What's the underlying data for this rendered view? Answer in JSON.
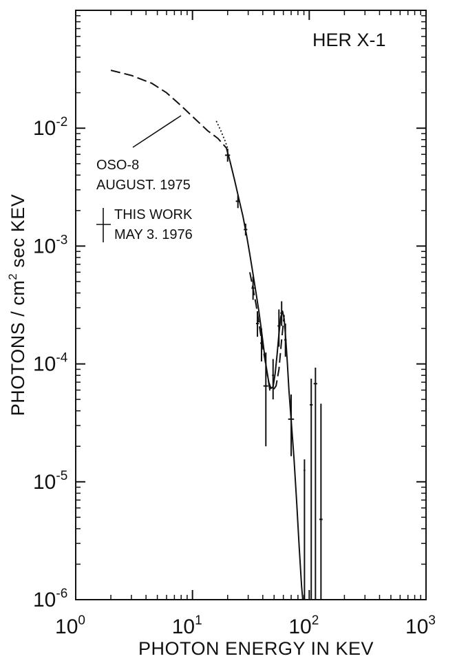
{
  "chart_data": {
    "type": "scatter",
    "title": "HER X-1",
    "xlabel": "PHOTON ENERGY IN KEV",
    "ylabel": "PHOTONS / cm² sec KEV",
    "ylabel_parts": {
      "pre": "PHOTONS / cm",
      "sup": "2",
      "post": " sec KEV"
    },
    "x_scale": "log",
    "y_scale": "log",
    "xlim": [
      1,
      1000
    ],
    "ylim": [
      1e-06,
      0.1
    ],
    "x_ticks": [
      {
        "value": 1,
        "base": "10",
        "exp": "0"
      },
      {
        "value": 10,
        "base": "10",
        "exp": "1"
      },
      {
        "value": 100,
        "base": "10",
        "exp": "2"
      },
      {
        "value": 1000,
        "base": "10",
        "exp": "3"
      }
    ],
    "y_ticks": [
      {
        "value": 0.01,
        "base": "10",
        "exp": "-2"
      },
      {
        "value": 0.001,
        "base": "10",
        "exp": "-3"
      },
      {
        "value": 0.0001,
        "base": "10",
        "exp": "-4"
      },
      {
        "value": 1e-05,
        "base": "10",
        "exp": "-5"
      },
      {
        "value": 1e-06,
        "base": "10",
        "exp": "-6"
      }
    ],
    "grid": false,
    "annotations": {
      "oso8": [
        "OSO-8",
        "AUGUST. 1975"
      ],
      "this_work": [
        "THIS WORK",
        "MAY 3. 1976"
      ]
    },
    "series": [
      {
        "style": "dashed",
        "x": [
          2.0,
          3.0,
          4.5,
          6.0,
          8.0,
          10.5,
          13.5,
          16.5,
          19.5
        ],
        "y": [
          0.031,
          0.028,
          0.024,
          0.02,
          0.0155,
          0.012,
          0.0095,
          0.0082,
          0.0068
        ]
      },
      {
        "style": "dotted",
        "x": [
          16.0,
          17.5,
          19.0,
          20.0
        ],
        "y": [
          0.0115,
          0.0095,
          0.0078,
          0.0068
        ]
      },
      {
        "style": "solid",
        "x": [
          19.5,
          21,
          23,
          25,
          27,
          29,
          31,
          33,
          35,
          37,
          39,
          41,
          43,
          45,
          47,
          49,
          51,
          53,
          55,
          57,
          59,
          61,
          63,
          65,
          67,
          70,
          74,
          78,
          82,
          86,
          88
        ],
        "y": [
          0.0068,
          0.0052,
          0.0036,
          0.0025,
          0.0018,
          0.00125,
          0.00085,
          0.00058,
          0.0004,
          0.00028,
          0.00019,
          0.00013,
          9.2e-05,
          7e-05,
          6.2e-05,
          6.4e-05,
          8.2e-05,
          0.00012,
          0.00018,
          0.00025,
          0.00028,
          0.00024,
          0.00016,
          0.0001,
          6e-05,
          3.3e-05,
          1.6e-05,
          6.8e-06,
          2.8e-06,
          1.3e-06,
          1e-06
        ]
      },
      {
        "style": "dashed",
        "x": [
          31,
          35,
          39,
          43,
          46,
          49,
          52,
          55,
          58,
          61
        ],
        "y": [
          0.0006,
          0.00032,
          0.00016,
          9.2e-05,
          6e-05,
          6e-05,
          6.5e-05,
          9e-05,
          0.00016,
          0.00026
        ]
      }
    ],
    "points": [
      {
        "x": 20.0,
        "xerr": [
          19.0,
          21.0
        ],
        "y": 0.0059,
        "yerr": [
          0.0052,
          0.0067
        ]
      },
      {
        "x": 24.5,
        "xerr": [
          23.5,
          25.5
        ],
        "y": 0.0024,
        "yerr": [
          0.0021,
          0.0027
        ]
      },
      {
        "x": 28.5,
        "xerr": [
          27.5,
          29.5
        ],
        "y": 0.00138,
        "yerr": [
          0.00123,
          0.00155
        ]
      },
      {
        "x": 33.0,
        "xerr": [
          32.0,
          34.0
        ],
        "y": 0.00044,
        "yerr": [
          0.00035,
          0.00055
        ]
      },
      {
        "x": 36.0,
        "xerr": [
          35.0,
          37.0
        ],
        "y": 0.00022,
        "yerr": [
          0.00017,
          0.00028
        ]
      },
      {
        "x": 39.0,
        "xerr": [
          38.0,
          40.0
        ],
        "y": 0.00015,
        "yerr": [
          0.000105,
          0.0002
        ]
      },
      {
        "x": 42.5,
        "xerr": [
          40.5,
          44.5
        ],
        "y": 6.5e-05,
        "yerr": [
          2e-05,
          0.000125
        ]
      },
      {
        "x": 49.0,
        "xerr": [
          48.0,
          50.0
        ],
        "y": 8e-05,
        "yerr": [
          5e-05,
          0.00011
        ]
      },
      {
        "x": 55.0,
        "xerr": [
          53.5,
          56.5
        ],
        "y": 0.00021,
        "yerr": [
          0.00014,
          0.00029
        ]
      },
      {
        "x": 58.0,
        "xerr": [
          56.5,
          59.5
        ],
        "y": 0.00027,
        "yerr": [
          0.00021,
          0.00034
        ]
      },
      {
        "x": 62.5,
        "xerr": [
          61.0,
          64.0
        ],
        "y": 0.00016,
        "yerr": [
          0.000115,
          0.00022
        ]
      },
      {
        "x": 70.0,
        "xerr": [
          66.0,
          74.0
        ],
        "y": 3.4e-05,
        "yerr": [
          1.65e-05,
          5.5e-05
        ]
      },
      {
        "x": 91.0,
        "xerr": [
          89.5,
          92.5
        ],
        "y": 1.25e-05,
        "yerr": [
          1e-06,
          1.55e-05
        ]
      },
      {
        "x": 104.0,
        "xerr": [
          101.0,
          107.0
        ],
        "y": 4.5e-05,
        "yerr": [
          1e-06,
          7.5e-05
        ]
      },
      {
        "x": 113.0,
        "xerr": [
          109.0,
          117.0
        ],
        "y": 6.8e-05,
        "yerr": [
          1e-06,
          9.3e-05
        ]
      },
      {
        "x": 126.0,
        "xerr": [
          122.0,
          130.0
        ],
        "y": 4.8e-06,
        "yerr": [
          1e-06,
          4.6e-05
        ]
      }
    ]
  }
}
